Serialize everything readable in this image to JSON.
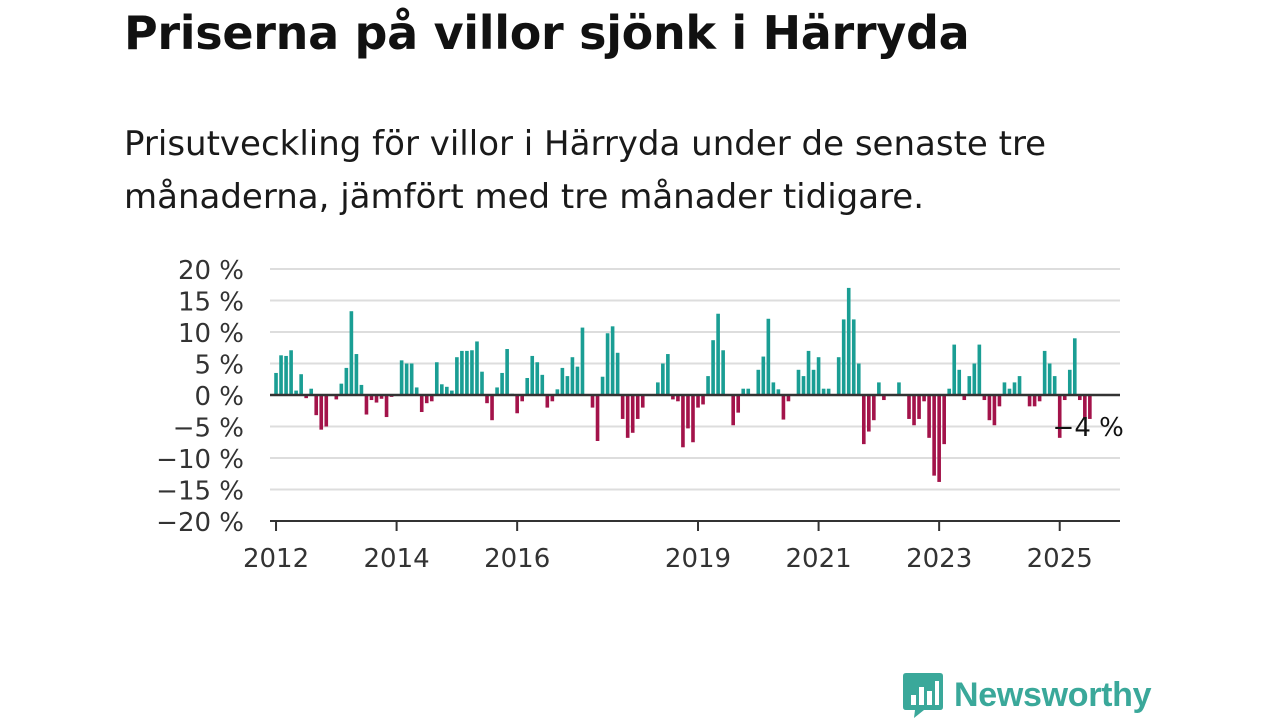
{
  "title": "Priserna på villor sjönk i Härryda",
  "subtitle": "Prisutveckling för villor i Härryda under de senaste tre månaderna, jämfört med tre månader tidigare.",
  "colors": {
    "positive": "#1a9e94",
    "negative": "#a3134a",
    "grid": "#dddddd",
    "axis": "#333333"
  },
  "logo_text": "Newsworthy",
  "chart_data": {
    "type": "bar",
    "xlabel": "",
    "ylabel": "",
    "ylim": [
      -20,
      20
    ],
    "xlim": [
      2011.9,
      2026.0
    ],
    "y_ticks": [
      20,
      15,
      10,
      5,
      0,
      -5,
      -10,
      -15,
      -20
    ],
    "y_tick_labels": [
      "20 %",
      "15 %",
      "10 %",
      "5 %",
      "0 %",
      "−5 %",
      "−10 %",
      "−15 %",
      "−20 %"
    ],
    "x_ticks": [
      2012,
      2014,
      2016,
      2019,
      2021,
      2023,
      2025
    ],
    "x_tick_labels": [
      "2012",
      "2014",
      "2016",
      "2019",
      "2021",
      "2023",
      "2025"
    ],
    "grid": true,
    "last_value_label": "−4 %",
    "first_month": "2012-01",
    "values": [
      3.5,
      6.3,
      6.2,
      7.1,
      0.7,
      3.3,
      -0.5,
      1.0,
      -3.2,
      -5.5,
      -5.0,
      0.0,
      -0.7,
      1.8,
      4.3,
      13.3,
      6.5,
      1.6,
      -3.1,
      -0.8,
      -1.2,
      -0.6,
      -3.5,
      -0.3,
      0.0,
      5.5,
      5.0,
      5.0,
      1.2,
      -2.7,
      -1.3,
      -1.0,
      5.2,
      1.7,
      1.3,
      0.7,
      6.0,
      7.0,
      7.0,
      7.1,
      8.5,
      3.7,
      -1.3,
      -4.0,
      1.2,
      3.5,
      7.3,
      0.2,
      -2.9,
      -1.0,
      2.7,
      6.2,
      5.2,
      3.2,
      -2.0,
      -1.0,
      0.9,
      4.3,
      3.0,
      6.0,
      4.5,
      10.7,
      0.0,
      -2.0,
      -7.3,
      2.9,
      9.8,
      10.9,
      6.7,
      -3.8,
      -6.8,
      -6.0,
      -3.8,
      -2.0,
      0.0,
      0.0,
      2.0,
      5.0,
      6.5,
      -0.7,
      -1.0,
      -8.3,
      -5.3,
      -7.5,
      -2.0,
      -1.5,
      3.0,
      8.7,
      12.9,
      7.1,
      0.0,
      -4.8,
      -2.8,
      1.0,
      1.0,
      0.0,
      4.0,
      6.1,
      12.1,
      2.0,
      0.9,
      -3.9,
      -1.0,
      0.0,
      4.0,
      3.0,
      7.0,
      4.0,
      6.0,
      1.0,
      1.0,
      0.0,
      6.0,
      12.0,
      17.0,
      12.0,
      5.0,
      -7.8,
      -5.8,
      -4.0,
      2.0,
      -0.8,
      0.0,
      0.0,
      2.0,
      0.0,
      -3.8,
      -4.8,
      -3.8,
      -1.0,
      -6.8,
      -12.8,
      -13.8,
      -7.8,
      1.0,
      8.0,
      4.0,
      -0.8,
      3.0,
      5.0,
      8.0,
      -0.8,
      -4.0,
      -4.8,
      -1.8,
      2.0,
      1.0,
      2.0,
      3.0,
      0.0,
      -1.8,
      -1.8,
      -1.0,
      7.0,
      5.0,
      3.0,
      -6.8,
      -0.8,
      4.0,
      9.0,
      -0.8,
      -3.8,
      -3.8
    ]
  }
}
